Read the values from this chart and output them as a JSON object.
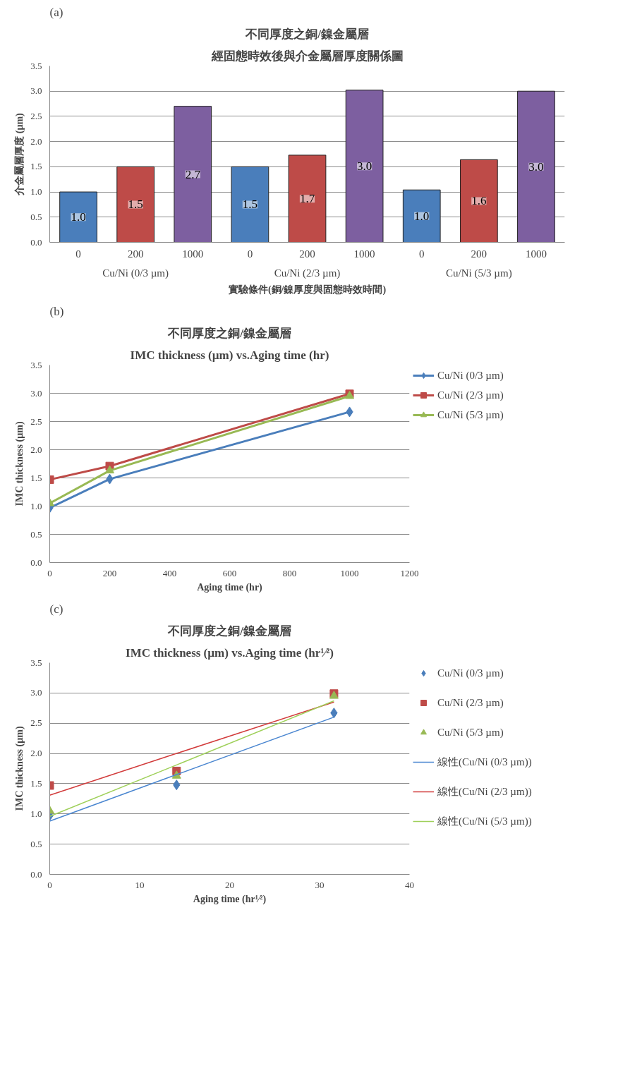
{
  "chart_data": [
    {
      "type": "bar",
      "title": "不同厚度之銅/鎳金屬層",
      "subtitle": "經固態時效後與介金屬層厚度關係圖",
      "xlabel": "實驗條件(銅/鎳厚度與固態時效時間)",
      "ylabel": "介金屬層厚度 (µm)",
      "annotations": [
        "(a)",
        "Cu/Ni (0/3 µm)",
        "Cu/Ni (2/3 µm)",
        "Cu/Ni (5/3 µm)"
      ],
      "categories": [
        "0",
        "200",
        "1000",
        "0",
        "200",
        "1000",
        "0",
        "200",
        "1000"
      ],
      "values": [
        1.0,
        1.5,
        2.7,
        1.5,
        1.73,
        3.02,
        1.04,
        1.64,
        3.0
      ],
      "value_labels": [
        "1.0",
        "1.5",
        "2.7",
        "1.5",
        "1.7",
        "3.0",
        "1.0",
        "1.6",
        "3.0"
      ],
      "colors": [
        "#4a7ebb",
        "#be4b48",
        "#7d5fa0",
        "#4a7ebb",
        "#be4b48",
        "#7d5fa0",
        "#4a7ebb",
        "#be4b48",
        "#7d5fa0"
      ],
      "ylim": [
        0,
        3.5
      ],
      "yticks": [
        {
          "value": 0,
          "label": "0.0"
        },
        {
          "value": 0.5,
          "label": "0.5"
        },
        {
          "value": 1,
          "label": "1.0"
        },
        {
          "value": 1.5,
          "label": "1.5"
        },
        {
          "value": 2,
          "label": "2.0"
        },
        {
          "value": 2.5,
          "label": "2.5"
        },
        {
          "value": 3,
          "label": "3.0"
        },
        {
          "value": 3.5,
          "label": "3.5"
        }
      ],
      "grid": "y"
    },
    {
      "type": "line",
      "title": "不同厚度之銅/鎳金屬層",
      "subtitle": "IMC thickness (µm) vs.Aging time (hr)",
      "xlabel": "Aging time (hr)",
      "ylabel": "IMC thickness (µm)",
      "annotations": [
        "(b)"
      ],
      "x": [
        0,
        200,
        1000
      ],
      "series": [
        {
          "name": "Cu/Ni (0/3 µm)",
          "color": "#4a7ebb",
          "values": [
            0.97,
            1.48,
            2.67
          ],
          "marker": "diamond"
        },
        {
          "name": "Cu/Ni (2/3 µm)",
          "color": "#be4b48",
          "values": [
            1.47,
            1.71,
            2.99
          ],
          "marker": "square"
        },
        {
          "name": "Cu/Ni (5/3 µm)",
          "color": "#98b954",
          "values": [
            1.05,
            1.63,
            2.95
          ],
          "marker": "triangle"
        }
      ],
      "xlim": [
        0,
        1200
      ],
      "xticks": [
        0,
        200,
        400,
        600,
        800,
        1000,
        1200
      ],
      "ylim": [
        0,
        3.5
      ],
      "yticks": [
        {
          "value": 0,
          "label": "0.0"
        },
        {
          "value": 0.5,
          "label": "0.5"
        },
        {
          "value": 1,
          "label": "1.0"
        },
        {
          "value": 1.5,
          "label": "1.5"
        },
        {
          "value": 2,
          "label": "2.0"
        },
        {
          "value": 2.5,
          "label": "2.5"
        },
        {
          "value": 3,
          "label": "3.0"
        },
        {
          "value": 3.5,
          "label": "3.5"
        }
      ],
      "grid": "y",
      "legend": "right"
    },
    {
      "type": "scatter",
      "title": "不同厚度之銅/鎳金屬層",
      "subtitle": "IMC thickness (µm) vs.Aging time (hr¹⁄²)",
      "xlabel": "Aging time (hr¹⁄²)",
      "ylabel": "IMC thickness (µm)",
      "annotations": [
        "(c)"
      ],
      "x": [
        0,
        14.1,
        31.6
      ],
      "series": [
        {
          "name": "Cu/Ni (0/3 µm)",
          "color": "#4a7ebb",
          "values": [
            0.97,
            1.48,
            2.67
          ],
          "marker": "diamond"
        },
        {
          "name": "Cu/Ni (2/3 µm)",
          "color": "#be4b48",
          "values": [
            1.47,
            1.71,
            2.99
          ],
          "marker": "square"
        },
        {
          "name": "Cu/Ni (5/3 µm)",
          "color": "#98b954",
          "values": [
            1.05,
            1.63,
            2.95
          ],
          "marker": "triangle"
        },
        {
          "name": "線性(Cu/Ni (0/3 µm))",
          "type": "line",
          "color": "#4a86d0",
          "values": [
            0.88,
            1.65,
            2.6
          ]
        },
        {
          "name": "線性(Cu/Ni (2/3 µm))",
          "type": "line",
          "color": "#d23c3c",
          "values": [
            1.31,
            2.0,
            2.85
          ]
        },
        {
          "name": "線性(Cu/Ni (5/3 µm))",
          "type": "line",
          "color": "#9fd05a",
          "values": [
            0.96,
            1.81,
            2.87
          ]
        }
      ],
      "xlim": [
        0,
        40
      ],
      "xticks": [
        0,
        10,
        20,
        30,
        40
      ],
      "ylim": [
        0,
        3.5
      ],
      "yticks": [
        {
          "value": 0,
          "label": "0.0"
        },
        {
          "value": 0.5,
          "label": "0.5"
        },
        {
          "value": 1,
          "label": "1.0"
        },
        {
          "value": 1.5,
          "label": "1.5"
        },
        {
          "value": 2,
          "label": "2.0"
        },
        {
          "value": 2.5,
          "label": "2.5"
        },
        {
          "value": 3,
          "label": "3.0"
        },
        {
          "value": 3.5,
          "label": "3.5"
        }
      ],
      "grid": "y",
      "legend": "right"
    }
  ]
}
